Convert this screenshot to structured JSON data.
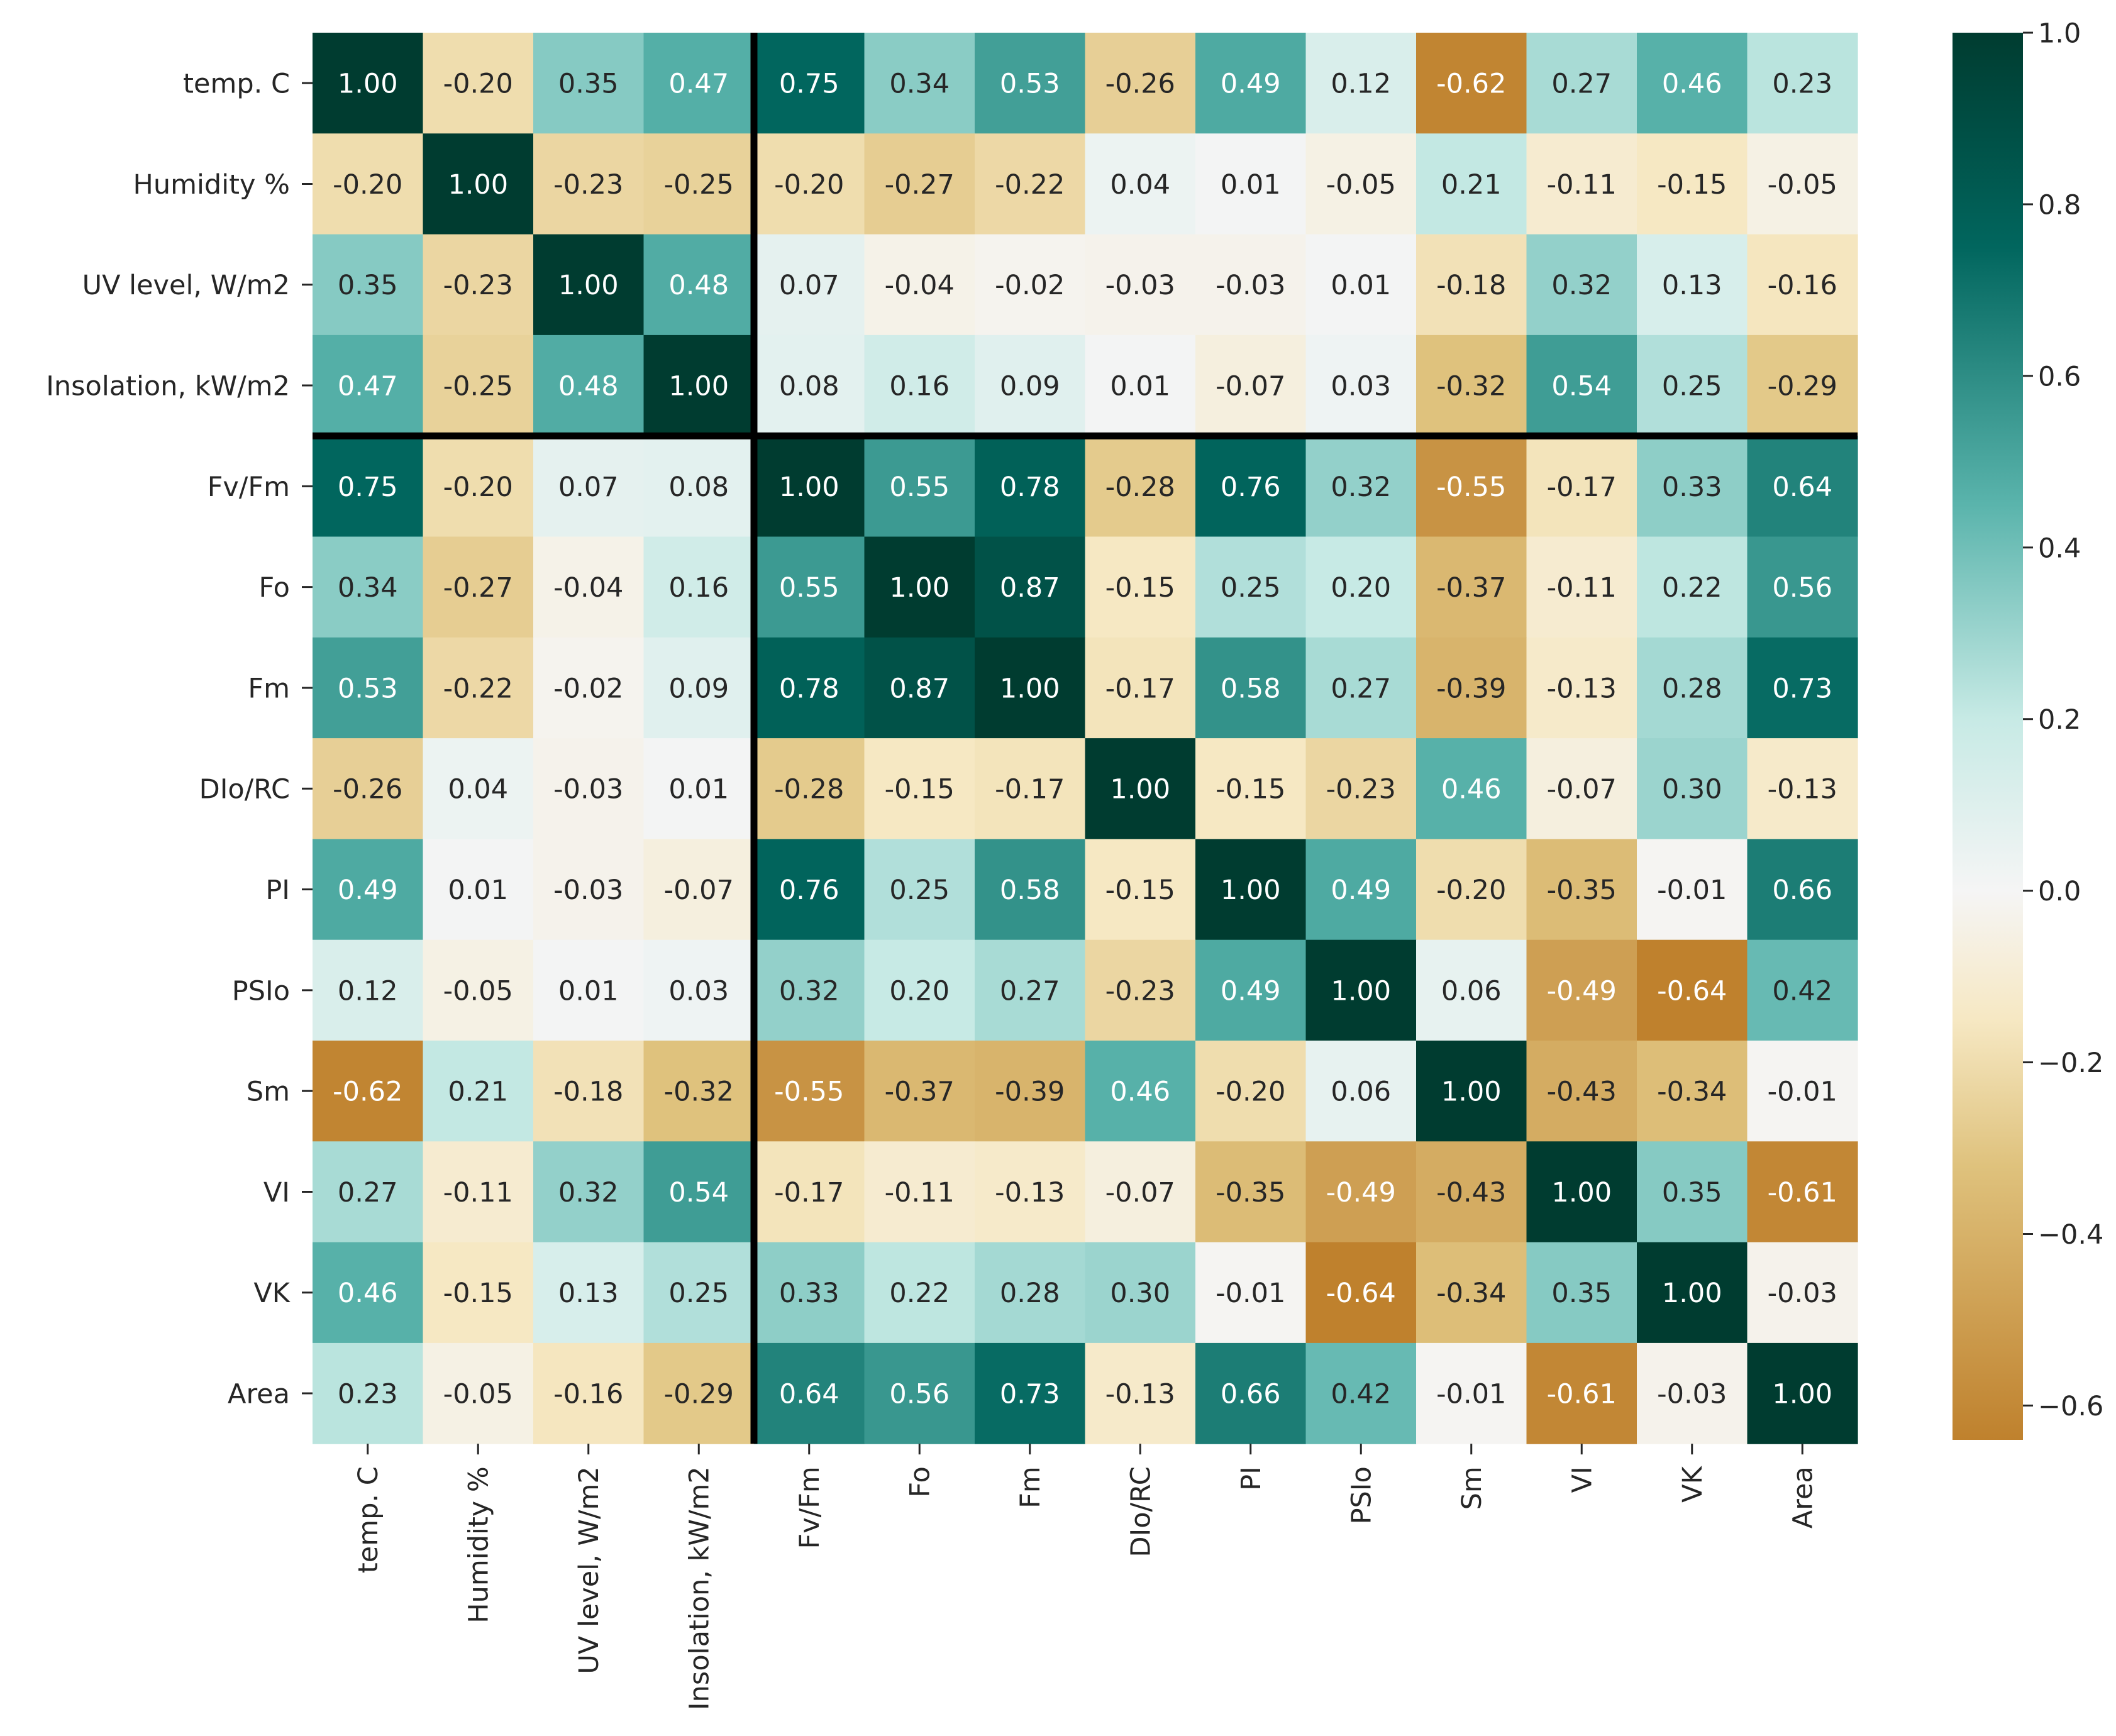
{
  "chart_data": {
    "type": "heatmap",
    "title": "",
    "xlabel": "",
    "ylabel": "",
    "labels": [
      "temp. C",
      "Humidity %",
      "UV level, W/m2",
      "Insolation, kW/m2",
      "Fv/Fm",
      "Fo",
      "Fm",
      "DIo/RC",
      "PI",
      "PSIo",
      "Sm",
      "VI",
      "VK",
      "Area"
    ],
    "matrix": [
      [
        1.0,
        -0.2,
        0.35,
        0.47,
        0.75,
        0.34,
        0.53,
        -0.26,
        0.49,
        0.12,
        -0.62,
        0.27,
        0.46,
        0.23
      ],
      [
        -0.2,
        1.0,
        -0.23,
        -0.25,
        -0.2,
        -0.27,
        -0.22,
        0.04,
        0.01,
        -0.05,
        0.21,
        -0.11,
        -0.15,
        -0.05
      ],
      [
        0.35,
        -0.23,
        1.0,
        0.48,
        0.07,
        -0.04,
        -0.02,
        -0.03,
        -0.03,
        0.01,
        -0.18,
        0.32,
        0.13,
        -0.16
      ],
      [
        0.47,
        -0.25,
        0.48,
        1.0,
        0.08,
        0.16,
        0.09,
        0.01,
        -0.07,
        0.03,
        -0.32,
        0.54,
        0.25,
        -0.29
      ],
      [
        0.75,
        -0.2,
        0.07,
        0.08,
        1.0,
        0.55,
        0.78,
        -0.28,
        0.76,
        0.32,
        -0.55,
        -0.17,
        0.33,
        0.64
      ],
      [
        0.34,
        -0.27,
        -0.04,
        0.16,
        0.55,
        1.0,
        0.87,
        -0.15,
        0.25,
        0.2,
        -0.37,
        -0.11,
        0.22,
        0.56
      ],
      [
        0.53,
        -0.22,
        -0.02,
        0.09,
        0.78,
        0.87,
        1.0,
        -0.17,
        0.58,
        0.27,
        -0.39,
        -0.13,
        0.28,
        0.73
      ],
      [
        -0.26,
        0.04,
        -0.03,
        0.01,
        -0.28,
        -0.15,
        -0.17,
        1.0,
        -0.15,
        -0.23,
        0.46,
        -0.07,
        0.3,
        -0.13
      ],
      [
        0.49,
        0.01,
        -0.03,
        -0.07,
        0.76,
        0.25,
        0.58,
        -0.15,
        1.0,
        0.49,
        -0.2,
        -0.35,
        -0.01,
        0.66
      ],
      [
        0.12,
        -0.05,
        0.01,
        0.03,
        0.32,
        0.2,
        0.27,
        -0.23,
        0.49,
        1.0,
        0.06,
        -0.49,
        -0.64,
        0.42
      ],
      [
        -0.62,
        0.21,
        -0.18,
        -0.32,
        -0.55,
        -0.37,
        -0.39,
        0.46,
        -0.2,
        0.06,
        1.0,
        -0.43,
        -0.34,
        -0.01
      ],
      [
        0.27,
        -0.11,
        0.32,
        0.54,
        -0.17,
        -0.11,
        -0.13,
        -0.07,
        -0.35,
        -0.49,
        -0.43,
        1.0,
        0.35,
        -0.61
      ],
      [
        0.46,
        -0.15,
        0.13,
        0.25,
        0.33,
        0.22,
        0.28,
        0.3,
        -0.01,
        -0.64,
        -0.34,
        0.35,
        1.0,
        -0.03
      ],
      [
        0.23,
        -0.05,
        -0.16,
        -0.29,
        0.64,
        0.56,
        0.73,
        -0.13,
        0.66,
        0.42,
        -0.01,
        -0.61,
        -0.03,
        1.0
      ]
    ],
    "value_range": [
      -0.64,
      1.0
    ],
    "colorbar": {
      "ticks": [
        1.0,
        0.8,
        0.6,
        0.4,
        0.2,
        0.0,
        -0.2,
        -0.4,
        -0.6
      ],
      "tick_labels": [
        "1.0",
        "0.8",
        "0.6",
        "0.4",
        "0.2",
        "0.0",
        "−0.2",
        "−0.4",
        "−0.6"
      ]
    },
    "colormap": {
      "name": "BrBG",
      "stops": [
        {
          "v": -0.64,
          "color": "#bf812d"
        },
        {
          "v": -0.32,
          "color": "#dfc27d"
        },
        {
          "v": -0.15,
          "color": "#f6e8c3"
        },
        {
          "v": 0.0,
          "color": "#f5f5f5"
        },
        {
          "v": 0.2,
          "color": "#c7eae5"
        },
        {
          "v": 0.45,
          "color": "#5ab4ac"
        },
        {
          "v": 0.75,
          "color": "#01665e"
        },
        {
          "v": 1.0,
          "color": "#003c30"
        }
      ]
    },
    "separator_after_index": 3
  }
}
